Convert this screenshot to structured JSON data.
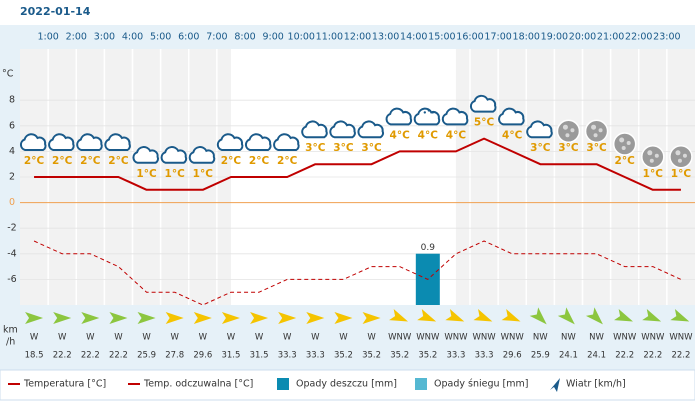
{
  "chart_data": {
    "type": "line",
    "title": "2022-01-14",
    "hour_labels": [
      "1:00",
      "2:00",
      "3:00",
      "4:00",
      "5:00",
      "6:00",
      "7:00",
      "8:00",
      "9:00",
      "10:00",
      "11:00",
      "12:00",
      "13:00",
      "14:00",
      "15:00",
      "16:00",
      "17:00",
      "18:00",
      "19:00",
      "20:00",
      "21:00",
      "22:00",
      "23:00"
    ],
    "y_unit": "°C",
    "wind_unit": [
      "km",
      "/h"
    ],
    "ylim": [
      -8,
      12
    ],
    "yticks": [
      8,
      6,
      4,
      2,
      0,
      -2,
      -4,
      -6
    ],
    "grid": true,
    "zero_color": "#f0a050",
    "series": [
      {
        "name": "Temperatura [°C]",
        "color": "#c00000",
        "values": [
          2,
          2,
          2,
          2,
          1,
          1,
          1,
          2,
          2,
          2,
          3,
          3,
          3,
          4,
          4,
          4,
          5,
          4,
          3,
          3,
          3,
          2,
          1,
          1
        ],
        "value_labels": [
          "2°C",
          "2°C",
          "2°C",
          "2°C",
          "1°C",
          "1°C",
          "1°C",
          "2°C",
          "2°C",
          "2°C",
          "3°C",
          "3°C",
          "3°C",
          "4°C",
          "4°C",
          "4°C",
          "5°C",
          "4°C",
          "3°C",
          "3°C",
          "3°C",
          "2°C",
          "1°C",
          "1°C"
        ]
      },
      {
        "name": "Temp. odczuwalna [°C]",
        "color": "#c00000",
        "dashed": true,
        "values": [
          -3,
          -4,
          -4,
          -5,
          -7,
          -7,
          -8,
          -7,
          -7,
          -6,
          -6,
          -6,
          -5,
          -5,
          -6,
          -4,
          -3,
          -4,
          -4,
          -4,
          -4,
          -5,
          -5,
          -6
        ]
      }
    ],
    "rain": {
      "name": "Opady deszczu [mm]",
      "color": "#0b8bb1",
      "values": [
        0,
        0,
        0,
        0,
        0,
        0,
        0,
        0,
        0,
        0,
        0,
        0,
        0,
        0,
        0.9,
        0,
        0,
        0,
        0,
        0,
        0,
        0,
        0,
        0
      ]
    },
    "snow": {
      "name": "Opady śniegu [mm]",
      "color": "#55b8d2"
    },
    "wind": {
      "name": "Wiatr [km/h]",
      "directions": [
        "W",
        "W",
        "W",
        "W",
        "W",
        "W",
        "W",
        "W",
        "W",
        "W",
        "W",
        "W",
        "W",
        "WNW",
        "WNW",
        "WNW",
        "WNW",
        "WNW",
        "NW",
        "NW",
        "NW",
        "WNW",
        "WNW",
        "WNW"
      ],
      "speeds": [
        18.5,
        22.2,
        22.2,
        22.2,
        25.9,
        27.8,
        29.6,
        31.5,
        31.5,
        33.3,
        33.3,
        35.2,
        35.2,
        35.2,
        35.2,
        33.3,
        33.3,
        29.6,
        25.9,
        24.1,
        24.1,
        22.2,
        22.2,
        22.2
      ],
      "colors": [
        "#8cc63f",
        "#8cc63f",
        "#8cc63f",
        "#8cc63f",
        "#8cc63f",
        "#f5c400",
        "#f5c400",
        "#f5c400",
        "#f5c400",
        "#f5c400",
        "#f5c400",
        "#f5c400",
        "#f5c400",
        "#f5c400",
        "#f5c400",
        "#f5c400",
        "#f5c400",
        "#f5c400",
        "#8cc63f",
        "#8cc63f",
        "#8cc63f",
        "#8cc63f",
        "#8cc63f",
        "#8cc63f"
      ]
    },
    "icons": [
      "cloud",
      "cloud",
      "cloud",
      "cloud",
      "cloud",
      "cloud",
      "cloud",
      "cloud",
      "cloud",
      "cloud",
      "cloud",
      "cloud",
      "cloud",
      "cloud",
      "cloud-rain",
      "cloud",
      "cloud",
      "cloud",
      "cloud",
      "night",
      "night",
      "night",
      "night",
      "night"
    ]
  }
}
